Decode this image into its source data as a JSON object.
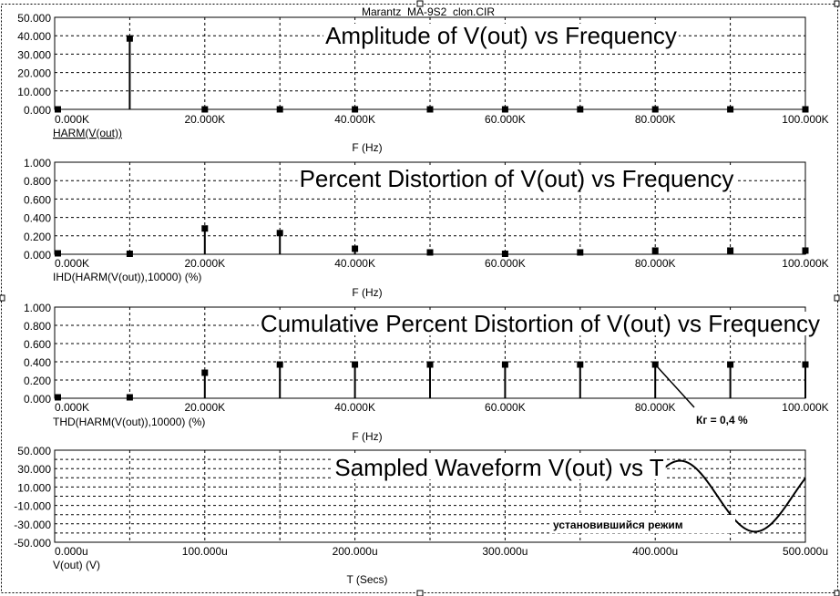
{
  "window": {
    "title": "Marantz_MA-9S2_clon.CIR"
  },
  "chart_data": [
    {
      "type": "bar",
      "title": "Amplitude of V(out) vs Frequency",
      "series_label": "HARM(V(out))",
      "xlabel": "F (Hz)",
      "xlim": [
        0,
        100000
      ],
      "ylim": [
        0,
        50
      ],
      "x_ticks": [
        "0.000K",
        "20.000K",
        "40.000K",
        "60.000K",
        "80.000K",
        "100.000K"
      ],
      "y_ticks": [
        "0.000",
        "10.000",
        "20.000",
        "30.000",
        "40.000",
        "50.000"
      ],
      "x": [
        0,
        10000,
        20000,
        30000,
        40000,
        50000,
        60000,
        70000,
        80000,
        90000,
        100000
      ],
      "values": [
        0,
        38.5,
        0,
        0,
        0,
        0,
        0,
        0,
        0,
        0,
        0
      ]
    },
    {
      "type": "bar",
      "title": "Percent Distortion of V(out) vs Frequency",
      "series_label": "IHD(HARM(V(out)),10000) (%)",
      "xlabel": "F (Hz)",
      "xlim": [
        0,
        100000
      ],
      "ylim": [
        0,
        1
      ],
      "x_ticks": [
        "0.000K",
        "20.000K",
        "40.000K",
        "60.000K",
        "80.000K",
        "100.000K"
      ],
      "y_ticks": [
        "0.000",
        "0.200",
        "0.400",
        "0.600",
        "0.800",
        "1.000"
      ],
      "x": [
        0,
        10000,
        20000,
        30000,
        40000,
        50000,
        60000,
        70000,
        80000,
        90000,
        100000
      ],
      "values": [
        0.01,
        0.005,
        0.28,
        0.23,
        0.06,
        0.02,
        0.005,
        0.02,
        0.04,
        0.04,
        0.04
      ]
    },
    {
      "type": "bar",
      "title": "Cumulative Percent Distortion of V(out) vs Frequency",
      "series_label": "THD(HARM(V(out)),10000) (%)",
      "xlabel": "F (Hz)",
      "xlim": [
        0,
        100000
      ],
      "ylim": [
        0,
        1
      ],
      "x_ticks": [
        "0.000K",
        "20.000K",
        "40.000K",
        "60.000K",
        "80.000K",
        "100.000K"
      ],
      "y_ticks": [
        "0.000",
        "0.200",
        "0.400",
        "0.600",
        "0.800",
        "1.000"
      ],
      "x": [
        0,
        10000,
        20000,
        30000,
        40000,
        50000,
        60000,
        70000,
        80000,
        90000,
        100000
      ],
      "values": [
        0.01,
        0.01,
        0.28,
        0.37,
        0.37,
        0.37,
        0.37,
        0.37,
        0.37,
        0.37,
        0.37
      ],
      "annotation": {
        "text": "Кг = 0,4 %",
        "x": 80000,
        "y": 0.37
      }
    },
    {
      "type": "line",
      "title": "Sampled Waveform  V(out) vs T",
      "series_label": "V(out) (V)",
      "xlabel": "T (Secs)",
      "xlim": [
        0,
        500
      ],
      "ylim": [
        -50,
        50
      ],
      "x_ticks": [
        "0.000u",
        "100.000u",
        "200.000u",
        "300.000u",
        "400.000u",
        "500.000u"
      ],
      "y_ticks": [
        "-50.000",
        "-30.000",
        "-10.000",
        "10.000",
        "30.000",
        "50.000"
      ],
      "amplitude": 38.5,
      "period": 100,
      "visible_from": 400,
      "visible_to": 500,
      "annotation": {
        "text": "установившийся режим"
      }
    }
  ]
}
